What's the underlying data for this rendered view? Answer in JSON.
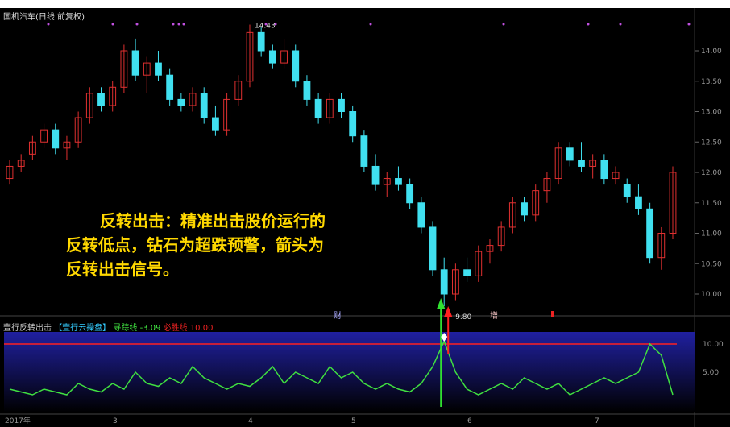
{
  "title": "国机汽车(日线 前复权)",
  "annotation": {
    "line1": "反转出击：精准出击股价运行的",
    "line2": "反转低点，钻石为超跌预警，箭头为",
    "line3": "反转出击信号。"
  },
  "indicator": {
    "name": "壹行反转出击",
    "tag": "【壹行云操盘】",
    "trace_label": "寻踪线",
    "trace_value": "-3.09",
    "win_label": "必胜线",
    "win_value": "10.00"
  },
  "markers": {
    "m1": "财",
    "m2": "增"
  },
  "colors": {
    "up": "#e03030",
    "down": "#40e0f0",
    "osc": "#40e040",
    "threshold": "#ff2020",
    "band": "#2020a0"
  },
  "chart_data": [
    {
      "type": "candlestick",
      "price_axis": [
        "14.00",
        "13.50",
        "13.00",
        "12.50",
        "12.00",
        "11.50",
        "11.00",
        "10.50",
        "10.00"
      ],
      "ylim": [
        9.7,
        14.6
      ],
      "date_ticks": [
        "2017年",
        "3",
        "4",
        "5",
        "6",
        "7"
      ],
      "high_label": "14.43",
      "low_label": "9.80",
      "ohlc": [
        [
          11.9,
          12.2,
          11.8,
          12.1
        ],
        [
          12.1,
          12.3,
          12.0,
          12.2
        ],
        [
          12.3,
          12.6,
          12.2,
          12.5
        ],
        [
          12.5,
          12.8,
          12.4,
          12.7
        ],
        [
          12.7,
          12.8,
          12.3,
          12.4
        ],
        [
          12.4,
          12.6,
          12.2,
          12.5
        ],
        [
          12.5,
          13.0,
          12.4,
          12.9
        ],
        [
          12.9,
          13.4,
          12.8,
          13.3
        ],
        [
          13.3,
          13.4,
          13.0,
          13.1
        ],
        [
          13.1,
          13.5,
          13.0,
          13.4
        ],
        [
          13.4,
          14.1,
          13.3,
          14.0
        ],
        [
          14.0,
          14.2,
          13.5,
          13.6
        ],
        [
          13.6,
          13.9,
          13.3,
          13.8
        ],
        [
          13.8,
          14.0,
          13.5,
          13.6
        ],
        [
          13.6,
          13.7,
          13.1,
          13.2
        ],
        [
          13.2,
          13.3,
          13.0,
          13.1
        ],
        [
          13.1,
          13.4,
          13.0,
          13.3
        ],
        [
          13.3,
          13.4,
          12.8,
          12.9
        ],
        [
          12.9,
          13.1,
          12.6,
          12.7
        ],
        [
          12.7,
          13.3,
          12.6,
          13.2
        ],
        [
          13.2,
          13.6,
          13.1,
          13.5
        ],
        [
          13.5,
          14.43,
          13.4,
          14.3
        ],
        [
          14.3,
          14.4,
          13.9,
          14.0
        ],
        [
          14.0,
          14.1,
          13.7,
          13.8
        ],
        [
          13.8,
          14.2,
          13.7,
          14.0
        ],
        [
          14.0,
          14.1,
          13.4,
          13.5
        ],
        [
          13.5,
          13.6,
          13.1,
          13.2
        ],
        [
          13.2,
          13.3,
          12.8,
          12.9
        ],
        [
          12.9,
          13.3,
          12.8,
          13.2
        ],
        [
          13.2,
          13.3,
          12.9,
          13.0
        ],
        [
          13.0,
          13.1,
          12.5,
          12.6
        ],
        [
          12.6,
          12.7,
          12.0,
          12.1
        ],
        [
          12.1,
          12.3,
          11.7,
          11.8
        ],
        [
          11.8,
          12.0,
          11.6,
          11.9
        ],
        [
          11.9,
          12.1,
          11.7,
          11.8
        ],
        [
          11.8,
          11.9,
          11.4,
          11.5
        ],
        [
          11.5,
          11.6,
          11.0,
          11.1
        ],
        [
          11.1,
          11.2,
          10.3,
          10.4
        ],
        [
          10.4,
          10.6,
          9.8,
          10.0
        ],
        [
          10.0,
          10.5,
          9.9,
          10.4
        ],
        [
          10.4,
          10.6,
          10.2,
          10.3
        ],
        [
          10.3,
          10.8,
          10.2,
          10.7
        ],
        [
          10.7,
          10.9,
          10.5,
          10.8
        ],
        [
          10.8,
          11.2,
          10.7,
          11.1
        ],
        [
          11.1,
          11.6,
          11.0,
          11.5
        ],
        [
          11.5,
          11.6,
          11.2,
          11.3
        ],
        [
          11.3,
          11.8,
          11.2,
          11.7
        ],
        [
          11.7,
          12.0,
          11.5,
          11.9
        ],
        [
          11.9,
          12.5,
          11.8,
          12.4
        ],
        [
          12.4,
          12.5,
          12.1,
          12.2
        ],
        [
          12.2,
          12.5,
          12.0,
          12.1
        ],
        [
          12.1,
          12.3,
          11.9,
          12.2
        ],
        [
          12.2,
          12.3,
          11.8,
          11.9
        ],
        [
          11.9,
          12.1,
          11.8,
          12.0
        ],
        [
          11.8,
          11.9,
          11.5,
          11.6
        ],
        [
          11.6,
          11.8,
          11.3,
          11.4
        ],
        [
          11.4,
          11.5,
          10.5,
          10.6
        ],
        [
          10.6,
          11.1,
          10.4,
          11.0
        ],
        [
          11.0,
          12.1,
          10.9,
          12.0
        ]
      ]
    },
    {
      "type": "line",
      "axis": [
        "10.00",
        "5.00"
      ],
      "ylim": [
        0,
        12
      ],
      "threshold": 10,
      "values": [
        2,
        1.5,
        1,
        2,
        1.5,
        1,
        3,
        2,
        1.5,
        3,
        2,
        5,
        3,
        2.5,
        4,
        3,
        6,
        4,
        3,
        2,
        3,
        2.5,
        4,
        6,
        3,
        5,
        4,
        3,
        6,
        4,
        5,
        3,
        2,
        3,
        2,
        1.5,
        3,
        6,
        10.5,
        5,
        2,
        1,
        2,
        3,
        2,
        4,
        3,
        2,
        3,
        1,
        2,
        3,
        4,
        3,
        4,
        5,
        10,
        8,
        1
      ]
    }
  ]
}
